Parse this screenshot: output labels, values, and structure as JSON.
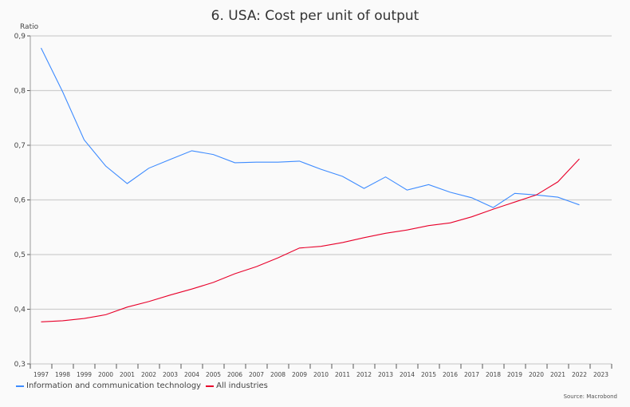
{
  "chart_data": {
    "type": "line",
    "title": "6. USA: Cost per unit of output",
    "ylabel": "Ratio",
    "xlabel": "",
    "ylim": [
      0.3,
      0.9
    ],
    "yticks": [
      "0,3",
      "0,4",
      "0,5",
      "0,6",
      "0,7",
      "0,8",
      "0,9"
    ],
    "ytick_values": [
      0.3,
      0.4,
      0.5,
      0.6,
      0.7,
      0.8,
      0.9
    ],
    "categories": [
      "1997",
      "1998",
      "1999",
      "2000",
      "2001",
      "2002",
      "2003",
      "2004",
      "2005",
      "2006",
      "2007",
      "2008",
      "2009",
      "2010",
      "2011",
      "2012",
      "2013",
      "2014",
      "2015",
      "2016",
      "2017",
      "2018",
      "2019",
      "2020",
      "2021",
      "2022",
      "2023"
    ],
    "grid": true,
    "legend_position": "bottom-left",
    "series": [
      {
        "name": "Information and communication technology",
        "color": "#3d8bff",
        "values": [
          0.878,
          0.798,
          0.71,
          0.662,
          0.63,
          0.658,
          0.674,
          0.69,
          0.683,
          0.668,
          0.669,
          0.669,
          0.671,
          0.656,
          0.643,
          0.621,
          0.642,
          0.618,
          0.628,
          0.614,
          0.604,
          0.586,
          0.612,
          0.609,
          0.605,
          0.591,
          null
        ]
      },
      {
        "name": "All industries",
        "color": "#e8002a",
        "values": [
          0.377,
          0.379,
          0.383,
          0.39,
          0.404,
          0.414,
          0.426,
          0.437,
          0.449,
          0.465,
          0.478,
          0.494,
          0.512,
          0.515,
          0.522,
          0.531,
          0.539,
          0.545,
          0.553,
          0.558,
          0.569,
          0.583,
          0.596,
          0.609,
          0.633,
          0.675,
          null
        ]
      }
    ],
    "source": "Source: Macrobond"
  }
}
